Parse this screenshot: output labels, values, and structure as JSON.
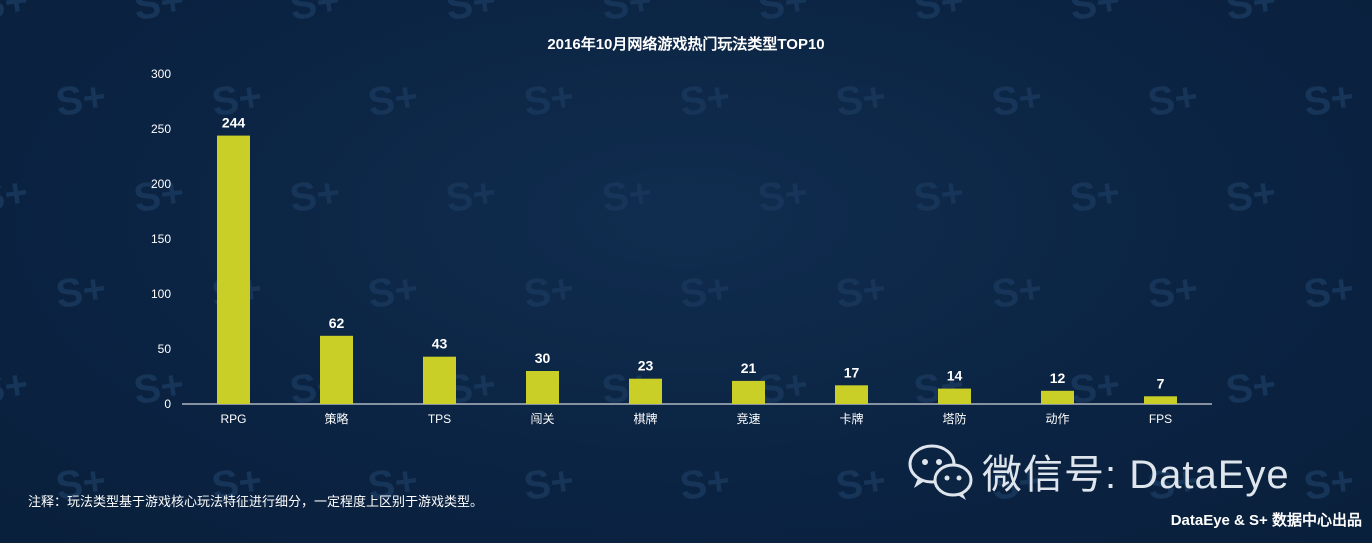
{
  "watermark": {
    "text": "S+",
    "color": "#173558"
  },
  "colors": {
    "background": "#0c2543",
    "bar": "#c9cf26",
    "text": "#ffffff",
    "axis": "#ffffff"
  },
  "chart_data": {
    "type": "bar",
    "title": "2016年10月网络游戏热门玩法类型TOP10",
    "categories": [
      "RPG",
      "策略",
      "TPS",
      "闯关",
      "棋牌",
      "竞速",
      "卡牌",
      "塔防",
      "动作",
      "FPS"
    ],
    "values": [
      244,
      62,
      43,
      30,
      23,
      21,
      17,
      14,
      12,
      7
    ],
    "ylim": [
      0,
      300
    ],
    "yticks": [
      0,
      50,
      100,
      150,
      200,
      250,
      300
    ],
    "xlabel": "",
    "ylabel": "",
    "grid": false,
    "legend": "none",
    "data_labels": true
  },
  "footnote": "注释：玩法类型基于游戏核心玩法特征进行细分，一定程度上区别于游戏类型。",
  "wechat": {
    "label": "微信号: DataEye",
    "icon": "wechat-icon"
  },
  "credit": "DataEye & S+ 数据中心出品"
}
